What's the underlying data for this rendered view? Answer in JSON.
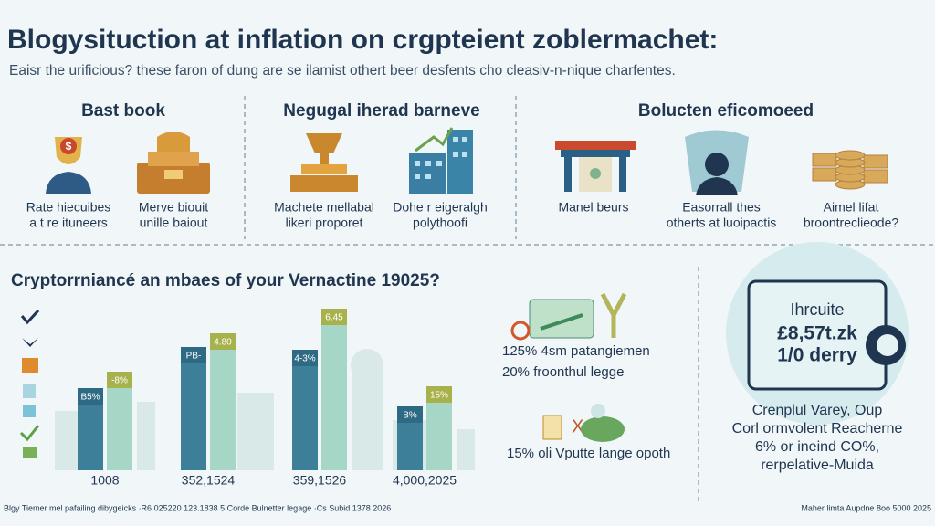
{
  "header": {
    "title": "Blogysituction at inflation on crgpteient zoblermachet:",
    "subtitle": "Eaisr the urificious? these faron of dung are se ilamist othert beer desfents cho cleasiv-n-nique charfentes."
  },
  "sections": [
    {
      "heading": "Bast book",
      "items": [
        [
          "Rate hiecuibes",
          "a t re ituneers"
        ],
        [
          "Merve biouit",
          "unille baiout"
        ]
      ]
    },
    {
      "heading": "Negugal iherad barneve",
      "items": [
        [
          "Machete mellabal",
          "likeri proporet"
        ],
        [
          "Dohe r eigeralgh",
          "polythoofi"
        ]
      ]
    },
    {
      "heading": "Bolucten eficomoeed",
      "items": [
        [
          "Manel beurs"
        ],
        [
          "Easorrall thes",
          "otherts at luoipactis"
        ],
        [
          "Aimel lifat",
          "broontreclieode?"
        ]
      ]
    }
  ],
  "chart_data": {
    "type": "bar",
    "title": "Cryptorrniancé an mbaes of your Vernactine 19025?",
    "categories": [
      "1008",
      "352,1524",
      "359,1526",
      "4,000,2025"
    ],
    "series": [
      {
        "color": "#3d7e99",
        "values": [
          90,
          135,
          132,
          70
        ]
      },
      {
        "color": "#a6d6c6",
        "values": [
          108,
          150,
          177,
          92
        ]
      }
    ],
    "annotations": [
      "B5%",
      "PB-",
      "4-3%",
      "B%",
      "-8%",
      "4.80",
      "6.45",
      "15%"
    ],
    "ylim": [
      0,
      180
    ]
  },
  "middle": {
    "lines": [
      "125% 4sm patangiemen",
      "20% froonthul legge",
      "15% oli Vputte lange opoth"
    ]
  },
  "card": {
    "lines": [
      "Ihrcuite",
      "£8,57t.zk",
      "1/0 derry"
    ],
    "caption": [
      "Crenplul Varey, Oup",
      "Corl ormvolent Reacherne",
      "6% or ineind CO%,",
      "rerpelative-Muida"
    ]
  },
  "footer": {
    "left": "Blgy Tiemer mel pafailing dibygeicks  ·R6 025220 123.1838 5 Corde Bulnetter legage  ·Cs Subid 1378 2026",
    "right": "Maher limta Aupdne 8oo 5000 2025"
  }
}
